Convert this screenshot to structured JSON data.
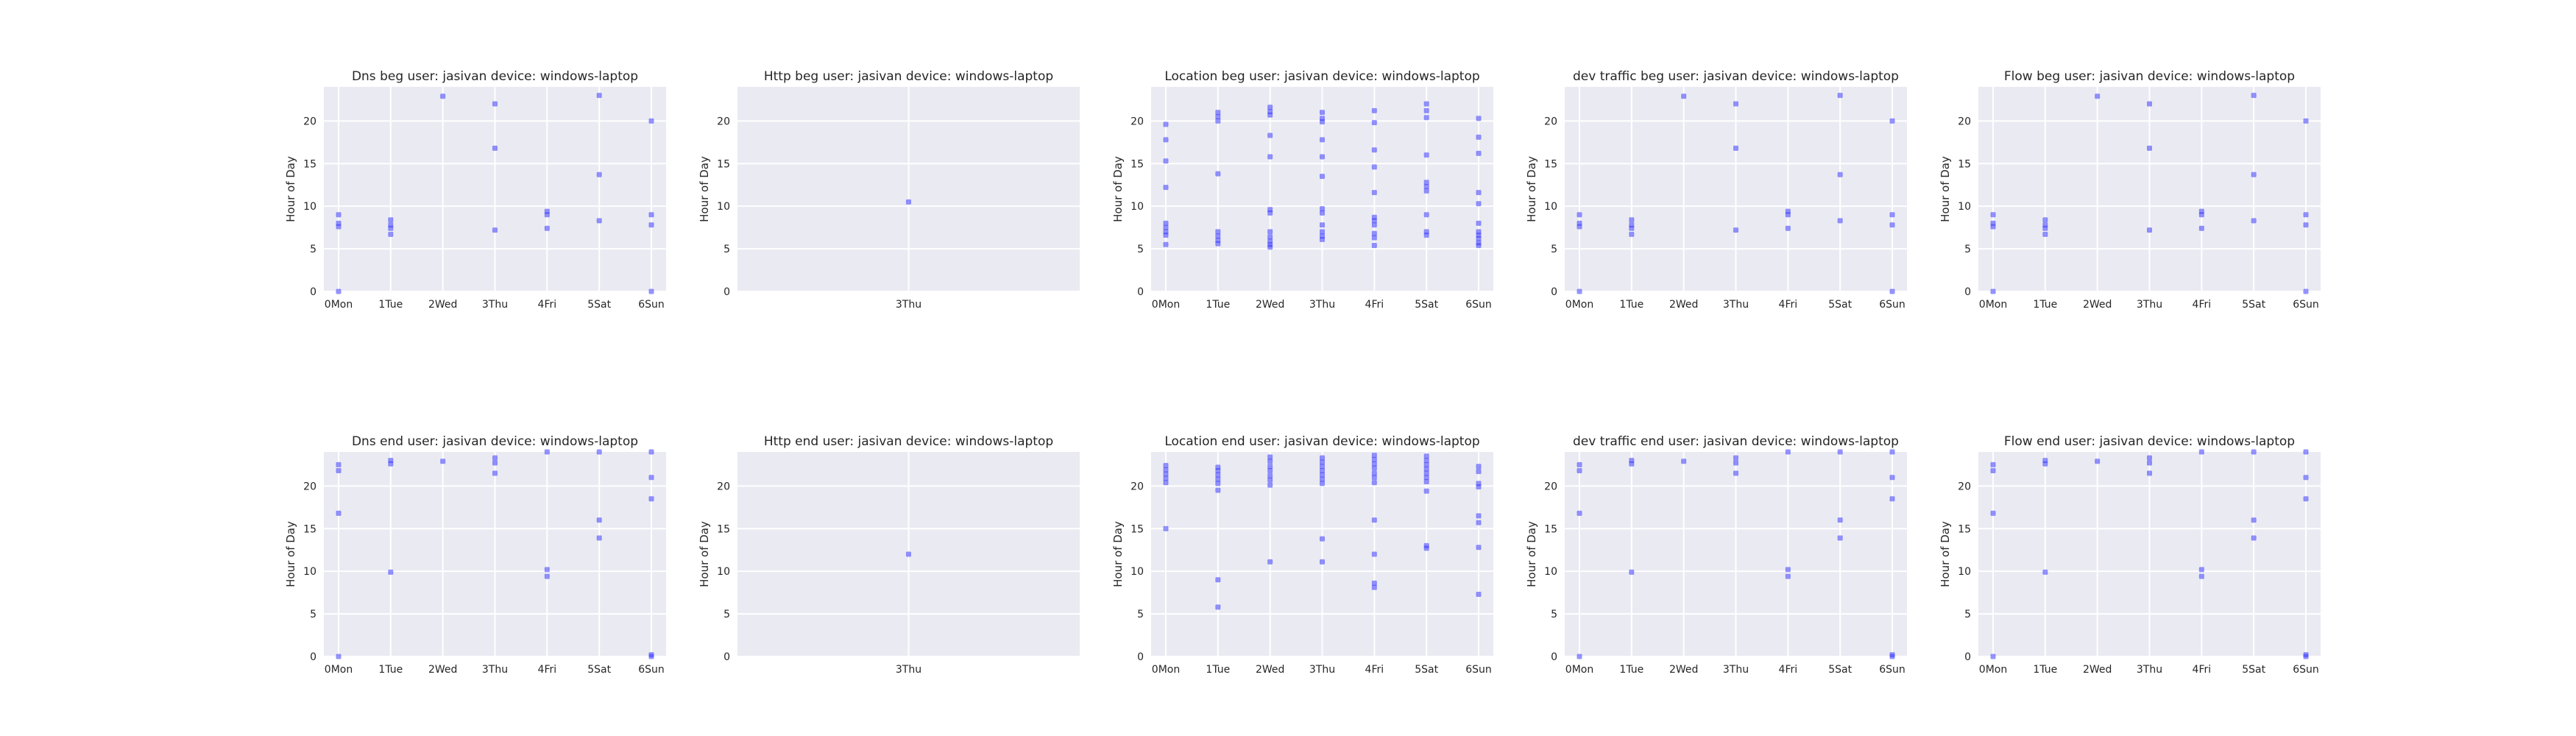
{
  "chart_data": [
    {
      "type": "scatter",
      "title": "Dns beg user: jasivan device: windows-laptop",
      "ylabel": "Hour of Day",
      "categories": [
        "0Mon",
        "1Tue",
        "2Wed",
        "3Thu",
        "4Fri",
        "5Sat",
        "6Sun"
      ],
      "yticks": [
        0,
        5,
        10,
        15,
        20
      ],
      "ylim": [
        0,
        24
      ],
      "grid": true,
      "points": [
        [
          0,
          9
        ],
        [
          0,
          8
        ],
        [
          0,
          7.6
        ],
        [
          0,
          0
        ],
        [
          1,
          8.4
        ],
        [
          1,
          7.8
        ],
        [
          1,
          7.4
        ],
        [
          1,
          6.7
        ],
        [
          2,
          22.9
        ],
        [
          3,
          22
        ],
        [
          3,
          16.8
        ],
        [
          3,
          7.2
        ],
        [
          4,
          9.4
        ],
        [
          4,
          9
        ],
        [
          4,
          7.4
        ],
        [
          5,
          23
        ],
        [
          5,
          13.7
        ],
        [
          5,
          8.3
        ],
        [
          6,
          20
        ],
        [
          6,
          9
        ],
        [
          6,
          7.8
        ],
        [
          6,
          0
        ]
      ]
    },
    {
      "type": "scatter",
      "title": "Http beg user: jasivan device: windows-laptop",
      "ylabel": "Hour of Day",
      "categories": [
        "3Thu"
      ],
      "yticks": [
        0,
        5,
        10,
        15,
        20
      ],
      "ylim": [
        0,
        24
      ],
      "grid": true,
      "points": [
        [
          0,
          10.5
        ]
      ]
    },
    {
      "type": "scatter",
      "title": "Location beg user: jasivan device: windows-laptop",
      "ylabel": "Hour of Day",
      "categories": [
        "0Mon",
        "1Tue",
        "2Wed",
        "3Thu",
        "4Fri",
        "5Sat",
        "6Sun"
      ],
      "yticks": [
        0,
        5,
        10,
        15,
        20
      ],
      "ylim": [
        0,
        24
      ],
      "grid": true,
      "points": [
        [
          0,
          19.6
        ],
        [
          0,
          17.8
        ],
        [
          0,
          15.3
        ],
        [
          0,
          12.2
        ],
        [
          0,
          8
        ],
        [
          0,
          7.5
        ],
        [
          0,
          7
        ],
        [
          0,
          6.6
        ],
        [
          0,
          5.5
        ],
        [
          1,
          21
        ],
        [
          1,
          20.5
        ],
        [
          1,
          20
        ],
        [
          1,
          13.8
        ],
        [
          1,
          7
        ],
        [
          1,
          6.5
        ],
        [
          1,
          6
        ],
        [
          1,
          5.6
        ],
        [
          2,
          21.6
        ],
        [
          2,
          21.1
        ],
        [
          2,
          20.7
        ],
        [
          2,
          18.3
        ],
        [
          2,
          15.8
        ],
        [
          2,
          9.6
        ],
        [
          2,
          9.2
        ],
        [
          2,
          7
        ],
        [
          2,
          6.4
        ],
        [
          2,
          5.9
        ],
        [
          2,
          5.5
        ],
        [
          2,
          5.2
        ],
        [
          3,
          21
        ],
        [
          3,
          20.3
        ],
        [
          3,
          19.9
        ],
        [
          3,
          17.8
        ],
        [
          3,
          15.8
        ],
        [
          3,
          13.5
        ],
        [
          3,
          9.7
        ],
        [
          3,
          9.2
        ],
        [
          3,
          7.8
        ],
        [
          3,
          7
        ],
        [
          3,
          6.5
        ],
        [
          3,
          6.1
        ],
        [
          4,
          21.2
        ],
        [
          4,
          19.8
        ],
        [
          4,
          16.6
        ],
        [
          4,
          14.6
        ],
        [
          4,
          11.6
        ],
        [
          4,
          8.7
        ],
        [
          4,
          8.3
        ],
        [
          4,
          7.8
        ],
        [
          4,
          6.8
        ],
        [
          4,
          6.3
        ],
        [
          4,
          5.4
        ],
        [
          5,
          22
        ],
        [
          5,
          21.2
        ],
        [
          5,
          20.4
        ],
        [
          5,
          16
        ],
        [
          5,
          12.8
        ],
        [
          5,
          12.3
        ],
        [
          5,
          11.8
        ],
        [
          5,
          9
        ],
        [
          5,
          7
        ],
        [
          5,
          6.6
        ],
        [
          6,
          20.3
        ],
        [
          6,
          18.1
        ],
        [
          6,
          16.2
        ],
        [
          6,
          11.6
        ],
        [
          6,
          10.3
        ],
        [
          6,
          8
        ],
        [
          6,
          7
        ],
        [
          6,
          6.6
        ],
        [
          6,
          6.2
        ],
        [
          6,
          5.7
        ],
        [
          6,
          5.4
        ]
      ]
    },
    {
      "type": "scatter",
      "title": "dev traffic beg user: jasivan device: windows-laptop",
      "ylabel": "Hour of Day",
      "categories": [
        "0Mon",
        "1Tue",
        "2Wed",
        "3Thu",
        "4Fri",
        "5Sat",
        "6Sun"
      ],
      "yticks": [
        0,
        5,
        10,
        15,
        20
      ],
      "ylim": [
        0,
        24
      ],
      "grid": true,
      "points": [
        [
          0,
          9
        ],
        [
          0,
          8
        ],
        [
          0,
          7.6
        ],
        [
          0,
          0
        ],
        [
          1,
          8.4
        ],
        [
          1,
          7.8
        ],
        [
          1,
          7.4
        ],
        [
          1,
          6.7
        ],
        [
          2,
          22.9
        ],
        [
          3,
          22
        ],
        [
          3,
          16.8
        ],
        [
          3,
          7.2
        ],
        [
          4,
          9.4
        ],
        [
          4,
          9
        ],
        [
          4,
          7.4
        ],
        [
          5,
          23
        ],
        [
          5,
          13.7
        ],
        [
          5,
          8.3
        ],
        [
          6,
          20
        ],
        [
          6,
          9
        ],
        [
          6,
          7.8
        ],
        [
          6,
          0
        ]
      ]
    },
    {
      "type": "scatter",
      "title": "Flow beg user: jasivan device: windows-laptop",
      "ylabel": "Hour of Day",
      "categories": [
        "0Mon",
        "1Tue",
        "2Wed",
        "3Thu",
        "4Fri",
        "5Sat",
        "6Sun"
      ],
      "yticks": [
        0,
        5,
        10,
        15,
        20
      ],
      "ylim": [
        0,
        24
      ],
      "grid": true,
      "points": [
        [
          0,
          9
        ],
        [
          0,
          8
        ],
        [
          0,
          7.6
        ],
        [
          0,
          0
        ],
        [
          1,
          8.4
        ],
        [
          1,
          7.8
        ],
        [
          1,
          7.4
        ],
        [
          1,
          6.7
        ],
        [
          2,
          22.9
        ],
        [
          3,
          22
        ],
        [
          3,
          16.8
        ],
        [
          3,
          7.2
        ],
        [
          4,
          9.4
        ],
        [
          4,
          9
        ],
        [
          4,
          7.4
        ],
        [
          5,
          23
        ],
        [
          5,
          13.7
        ],
        [
          5,
          8.3
        ],
        [
          6,
          20
        ],
        [
          6,
          9
        ],
        [
          6,
          7.8
        ],
        [
          6,
          0
        ]
      ]
    },
    {
      "type": "scatter",
      "title": "Dns end user: jasivan device: windows-laptop",
      "ylabel": "Hour of Day",
      "categories": [
        "0Mon",
        "1Tue",
        "2Wed",
        "3Thu",
        "4Fri",
        "5Sat",
        "6Sun"
      ],
      "yticks": [
        0,
        5,
        10,
        15,
        20
      ],
      "ylim": [
        0,
        24
      ],
      "grid": true,
      "points": [
        [
          0,
          22.5
        ],
        [
          0,
          21.8
        ],
        [
          0,
          16.8
        ],
        [
          0,
          0
        ],
        [
          1,
          23
        ],
        [
          1,
          22.6
        ],
        [
          1,
          9.9
        ],
        [
          2,
          22.9
        ],
        [
          3,
          23.3
        ],
        [
          3,
          22.7
        ],
        [
          3,
          21.5
        ],
        [
          4,
          24
        ],
        [
          4,
          10.2
        ],
        [
          4,
          9.4
        ],
        [
          5,
          24
        ],
        [
          5,
          16
        ],
        [
          5,
          13.9
        ],
        [
          6,
          24
        ],
        [
          6,
          21
        ],
        [
          6,
          18.5
        ],
        [
          6,
          0.2
        ],
        [
          6,
          0
        ]
      ]
    },
    {
      "type": "scatter",
      "title": "Http end user: jasivan device: windows-laptop",
      "ylabel": "Hour of Day",
      "categories": [
        "3Thu"
      ],
      "yticks": [
        0,
        5,
        10,
        15,
        20
      ],
      "ylim": [
        0,
        24
      ],
      "grid": true,
      "points": [
        [
          0,
          12
        ]
      ]
    },
    {
      "type": "scatter",
      "title": "Location end user: jasivan device: windows-laptop",
      "ylabel": "Hour of Day",
      "categories": [
        "0Mon",
        "1Tue",
        "2Wed",
        "3Thu",
        "4Fri",
        "5Sat",
        "6Sun"
      ],
      "yticks": [
        0,
        5,
        10,
        15,
        20
      ],
      "ylim": [
        0,
        24
      ],
      "grid": true,
      "points": [
        [
          0,
          22.4
        ],
        [
          0,
          21.9
        ],
        [
          0,
          21.4
        ],
        [
          0,
          20.9
        ],
        [
          0,
          20.4
        ],
        [
          0,
          15
        ],
        [
          1,
          22.2
        ],
        [
          1,
          21.8
        ],
        [
          1,
          21.3
        ],
        [
          1,
          20.8
        ],
        [
          1,
          20.3
        ],
        [
          1,
          19.5
        ],
        [
          1,
          9
        ],
        [
          1,
          5.8
        ],
        [
          2,
          23.4
        ],
        [
          2,
          22.9
        ],
        [
          2,
          22.3
        ],
        [
          2,
          21.8
        ],
        [
          2,
          21.2
        ],
        [
          2,
          20.7
        ],
        [
          2,
          20.1
        ],
        [
          2,
          11.1
        ],
        [
          3,
          23.3
        ],
        [
          3,
          22.8
        ],
        [
          3,
          22.3
        ],
        [
          3,
          21.8
        ],
        [
          3,
          21.3
        ],
        [
          3,
          20.8
        ],
        [
          3,
          20.3
        ],
        [
          3,
          13.8
        ],
        [
          3,
          11.1
        ],
        [
          4,
          23.6
        ],
        [
          4,
          23.1
        ],
        [
          4,
          22.6
        ],
        [
          4,
          22.1
        ],
        [
          4,
          21.5
        ],
        [
          4,
          21
        ],
        [
          4,
          20.4
        ],
        [
          4,
          16
        ],
        [
          4,
          12
        ],
        [
          4,
          8.6
        ],
        [
          4,
          8.1
        ],
        [
          5,
          23.5
        ],
        [
          5,
          23
        ],
        [
          5,
          22.5
        ],
        [
          5,
          22
        ],
        [
          5,
          21.5
        ],
        [
          5,
          21
        ],
        [
          5,
          20.5
        ],
        [
          5,
          19.4
        ],
        [
          5,
          13
        ],
        [
          5,
          12.7
        ],
        [
          6,
          22.3
        ],
        [
          6,
          21.7
        ],
        [
          6,
          20.3
        ],
        [
          6,
          19.9
        ],
        [
          6,
          16.5
        ],
        [
          6,
          15.7
        ],
        [
          6,
          12.8
        ],
        [
          6,
          7.3
        ]
      ]
    },
    {
      "type": "scatter",
      "title": "dev traffic end user: jasivan device: windows-laptop",
      "ylabel": "Hour of Day",
      "categories": [
        "0Mon",
        "1Tue",
        "2Wed",
        "3Thu",
        "4Fri",
        "5Sat",
        "6Sun"
      ],
      "yticks": [
        0,
        5,
        10,
        15,
        20
      ],
      "ylim": [
        0,
        24
      ],
      "grid": true,
      "points": [
        [
          0,
          22.5
        ],
        [
          0,
          21.8
        ],
        [
          0,
          16.8
        ],
        [
          0,
          0
        ],
        [
          1,
          23
        ],
        [
          1,
          22.6
        ],
        [
          1,
          9.9
        ],
        [
          2,
          22.9
        ],
        [
          3,
          23.3
        ],
        [
          3,
          22.7
        ],
        [
          3,
          21.5
        ],
        [
          4,
          24
        ],
        [
          4,
          10.2
        ],
        [
          4,
          9.4
        ],
        [
          5,
          24
        ],
        [
          5,
          16
        ],
        [
          5,
          13.9
        ],
        [
          6,
          24
        ],
        [
          6,
          21
        ],
        [
          6,
          18.5
        ],
        [
          6,
          0.2
        ],
        [
          6,
          0
        ]
      ]
    },
    {
      "type": "scatter",
      "title": "Flow end user: jasivan device: windows-laptop",
      "ylabel": "Hour of Day",
      "categories": [
        "0Mon",
        "1Tue",
        "2Wed",
        "3Thu",
        "4Fri",
        "5Sat",
        "6Sun"
      ],
      "yticks": [
        0,
        5,
        10,
        15,
        20
      ],
      "ylim": [
        0,
        24
      ],
      "grid": true,
      "points": [
        [
          0,
          22.5
        ],
        [
          0,
          21.8
        ],
        [
          0,
          16.8
        ],
        [
          0,
          0
        ],
        [
          1,
          23
        ],
        [
          1,
          22.6
        ],
        [
          1,
          9.9
        ],
        [
          2,
          22.9
        ],
        [
          3,
          23.3
        ],
        [
          3,
          22.7
        ],
        [
          3,
          21.5
        ],
        [
          4,
          24
        ],
        [
          4,
          10.2
        ],
        [
          4,
          9.4
        ],
        [
          5,
          24
        ],
        [
          5,
          16
        ],
        [
          5,
          13.9
        ],
        [
          6,
          24
        ],
        [
          6,
          21
        ],
        [
          6,
          18.5
        ],
        [
          6,
          0.2
        ],
        [
          6,
          0
        ]
      ]
    }
  ]
}
